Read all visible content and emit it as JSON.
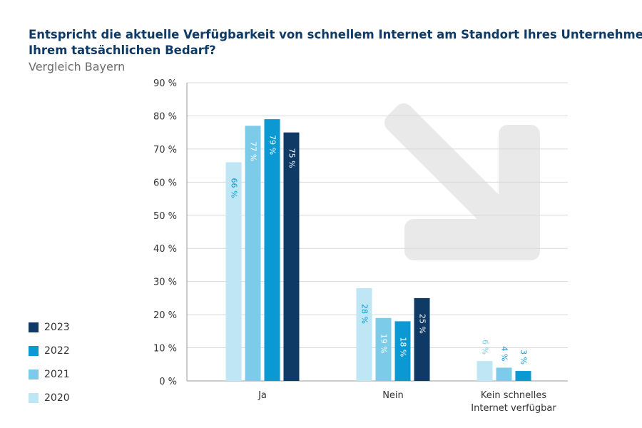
{
  "header": {
    "title_line1": "Entspricht die aktuelle Verfügbarkeit von schnellem Internet am Standort Ihres Unternehmens",
    "title_line2": "Ihrem tatsächlichen Bedarf?",
    "subtitle": "Vergleich Bayern"
  },
  "colors": {
    "2020": "#bfe6f4",
    "2021": "#7ccbe9",
    "2022": "#0a99d2",
    "2023": "#0f3a66",
    "arrow": "#e9e9e9"
  },
  "legend": [
    {
      "label": "2023",
      "color": "#0f3a66"
    },
    {
      "label": "2022",
      "color": "#0a99d2"
    },
    {
      "label": "2021",
      "color": "#7ccbe9"
    },
    {
      "label": "2020",
      "color": "#bfe6f4"
    }
  ],
  "chart_data": {
    "type": "bar",
    "title": "Entspricht die aktuelle Verfügbarkeit von schnellem Internet am Standort Ihres Unternehmens Ihrem tatsächlichen Bedarf?",
    "subtitle": "Vergleich Bayern",
    "categories": [
      {
        "line1": "Ja",
        "line2": ""
      },
      {
        "line1": "Nein",
        "line2": ""
      },
      {
        "line1": "Kein schnelles",
        "line2": "Internet verfügbar"
      }
    ],
    "series": [
      {
        "name": "2020",
        "values": [
          66,
          28,
          6
        ],
        "labels": [
          "66 %",
          "28 %",
          "6 %"
        ]
      },
      {
        "name": "2021",
        "values": [
          77,
          19,
          4
        ],
        "labels": [
          "77 %",
          "19 %",
          "4 %"
        ]
      },
      {
        "name": "2022",
        "values": [
          79,
          18,
          3
        ],
        "labels": [
          "79 %",
          "18 %",
          "3 %"
        ]
      },
      {
        "name": "2023",
        "values": [
          75,
          25,
          null
        ],
        "labels": [
          "75 %",
          "25 %",
          ""
        ]
      }
    ],
    "yticks": [
      {
        "value": 0,
        "label": "0 %"
      },
      {
        "value": 10,
        "label": "10 %"
      },
      {
        "value": 20,
        "label": "20 %"
      },
      {
        "value": 30,
        "label": "30 %"
      },
      {
        "value": 40,
        "label": "40 %"
      },
      {
        "value": 50,
        "label": "50 %"
      },
      {
        "value": 60,
        "label": "60 %"
      },
      {
        "value": 70,
        "label": "70 %"
      },
      {
        "value": 80,
        "label": "80 %"
      },
      {
        "value": 90,
        "label": "90 %"
      }
    ],
    "ylim": [
      0,
      90
    ],
    "grid": true,
    "legend_position": "bottom-left",
    "xlabel": "",
    "ylabel": ""
  }
}
